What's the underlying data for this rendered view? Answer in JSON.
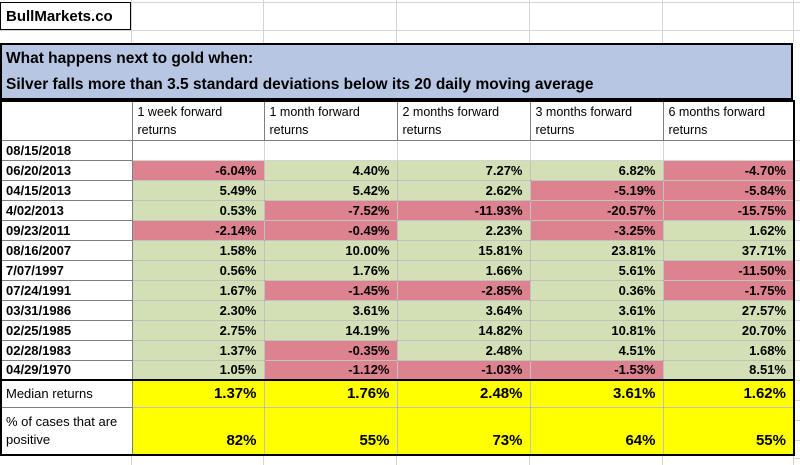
{
  "brand": "BullMarkets.co",
  "title": {
    "line1": "What happens next to gold when:",
    "line2": "Silver falls more than 3.5 standard deviations below its 20 daily moving average"
  },
  "table": {
    "columns": [
      "1 week forward returns",
      "1 month forward returns",
      "2 months forward returns",
      "3 months forward returns",
      "6 months forward returns"
    ],
    "rows": [
      {
        "date": "08/15/2018",
        "values": [
          "",
          "",
          "",
          "",
          ""
        ],
        "colors": [
          "w",
          "w",
          "w",
          "w",
          "w"
        ]
      },
      {
        "date": "06/20/2013",
        "values": [
          "-6.04%",
          "4.40%",
          "7.27%",
          "6.82%",
          "-4.70%"
        ],
        "colors": [
          "r",
          "g",
          "g",
          "g",
          "r"
        ]
      },
      {
        "date": "04/15/2013",
        "values": [
          "5.49%",
          "5.42%",
          "2.62%",
          "-5.19%",
          "-5.84%"
        ],
        "colors": [
          "g",
          "g",
          "g",
          "r",
          "r"
        ]
      },
      {
        "date": "4/02/2013",
        "values": [
          "0.53%",
          "-7.52%",
          "-11.93%",
          "-20.57%",
          "-15.75%"
        ],
        "colors": [
          "g",
          "r",
          "r",
          "r",
          "r"
        ]
      },
      {
        "date": "09/23/2011",
        "values": [
          "-2.14%",
          "-0.49%",
          "2.23%",
          "-3.25%",
          "1.62%"
        ],
        "colors": [
          "r",
          "r",
          "g",
          "r",
          "g"
        ]
      },
      {
        "date": "08/16/2007",
        "values": [
          "1.58%",
          "10.00%",
          "15.81%",
          "23.81%",
          "37.71%"
        ],
        "colors": [
          "g",
          "g",
          "g",
          "g",
          "g"
        ]
      },
      {
        "date": "7/07/1997",
        "values": [
          "0.56%",
          "1.76%",
          "1.66%",
          "5.61%",
          "-11.50%"
        ],
        "colors": [
          "g",
          "g",
          "g",
          "g",
          "r"
        ]
      },
      {
        "date": "07/24/1991",
        "values": [
          "1.67%",
          "-1.45%",
          "-2.85%",
          "0.36%",
          "-1.75%"
        ],
        "colors": [
          "g",
          "r",
          "r",
          "g",
          "r"
        ]
      },
      {
        "date": "03/31/1986",
        "values": [
          "2.30%",
          "3.61%",
          "3.64%",
          "3.61%",
          "27.57%"
        ],
        "colors": [
          "g",
          "g",
          "g",
          "g",
          "g"
        ]
      },
      {
        "date": "02/25/1985",
        "values": [
          "2.75%",
          "14.19%",
          "14.82%",
          "10.81%",
          "20.70%"
        ],
        "colors": [
          "g",
          "g",
          "g",
          "g",
          "g"
        ]
      },
      {
        "date": "02/28/1983",
        "values": [
          "1.37%",
          "-0.35%",
          "2.48%",
          "4.51%",
          "1.68%"
        ],
        "colors": [
          "g",
          "r",
          "g",
          "g",
          "g"
        ]
      },
      {
        "date": "04/29/1970",
        "values": [
          "1.05%",
          "-1.12%",
          "-1.03%",
          "-1.53%",
          "8.51%"
        ],
        "colors": [
          "g",
          "r",
          "r",
          "r",
          "g"
        ]
      }
    ],
    "summary": [
      {
        "label": "Median returns",
        "values": [
          "1.37%",
          "1.76%",
          "2.48%",
          "3.61%",
          "1.62%"
        ]
      },
      {
        "label": "% of cases that are positive",
        "values": [
          "82%",
          "55%",
          "73%",
          "64%",
          "55%"
        ]
      }
    ]
  },
  "colors": {
    "positive_cell": "#d3e0b5",
    "negative_cell": "#dd8390",
    "summary_bg": "#ffff00",
    "title_bg": "#b7c6e2",
    "grid": "#d4d4d4"
  }
}
